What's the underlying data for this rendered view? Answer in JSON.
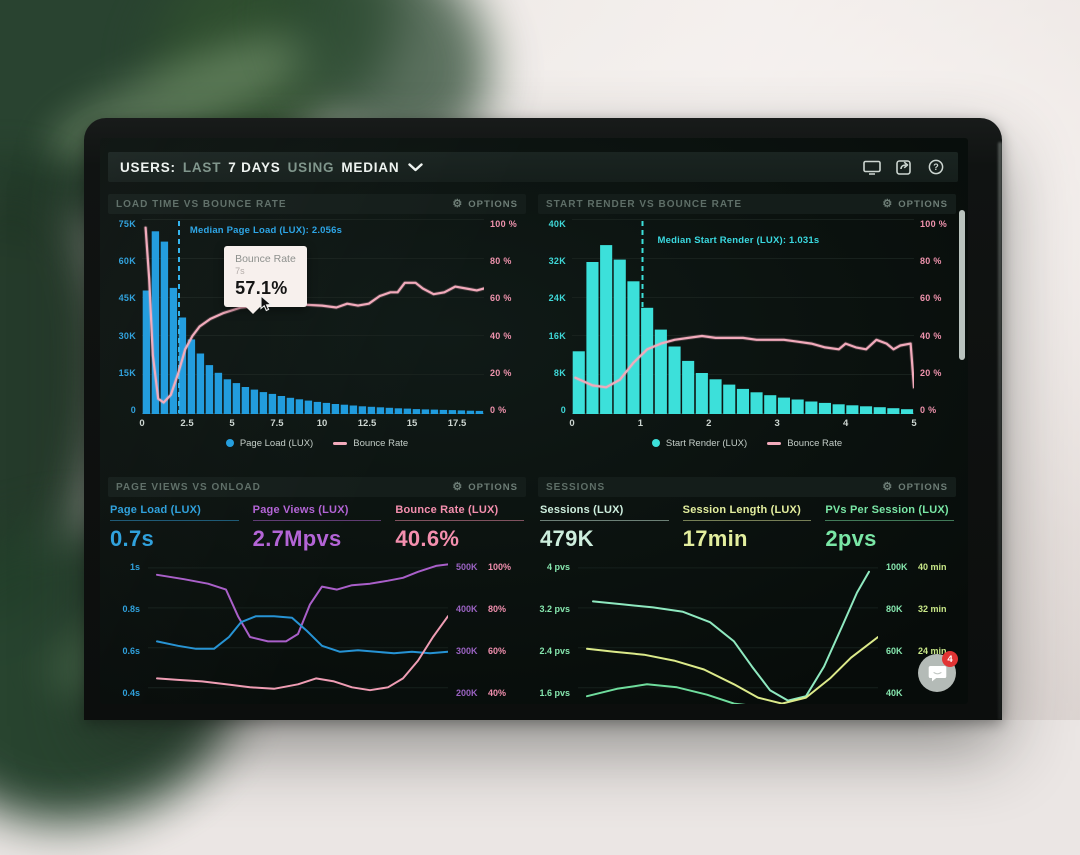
{
  "window": {
    "title_segments": [
      {
        "text": "USERS:"
      },
      {
        "text": "LAST"
      },
      {
        "text": "7 DAYS"
      },
      {
        "text": "USING"
      },
      {
        "text": "MEDIAN"
      }
    ],
    "toolbar_icons": [
      "display-icon",
      "share-icon",
      "help-icon"
    ]
  },
  "panels": [
    {
      "title": "LOAD TIME VS BOUNCE RATE",
      "options_label": "OPTIONS",
      "tooltip": {
        "title": "Bounce Rate",
        "sub": "7s",
        "value": "57.1%"
      },
      "legend": [
        {
          "label": "Page Load (LUX)",
          "color": "#229ddd"
        },
        {
          "label": "Bounce Rate",
          "color": "#f2aabb"
        }
      ]
    },
    {
      "title": "START RENDER VS BOUNCE RATE",
      "options_label": "OPTIONS",
      "legend": [
        {
          "label": "Start Render (LUX)",
          "color": "#3ce0da"
        },
        {
          "label": "Bounce Rate",
          "color": "#f2aabb"
        }
      ]
    },
    {
      "title": "PAGE VIEWS VS ONLOAD",
      "options_label": "OPTIONS",
      "stats": [
        {
          "label": "Page Load (LUX)",
          "value": "0.7s",
          "color": "#2da0dc"
        },
        {
          "label": "Page Views (LUX)",
          "value": "2.7Mpvs",
          "color": "#b364d6"
        },
        {
          "label": "Bounce Rate (LUX)",
          "value": "40.6%",
          "color": "#f48fae"
        }
      ],
      "left_axis": [
        "1s",
        "0.8s",
        "0.6s",
        "0.4s"
      ],
      "left_axis_color": "#2da0dc",
      "right_axis": [
        [
          "500K",
          "100%"
        ],
        [
          "400K",
          "80%"
        ],
        [
          "300K",
          "60%"
        ],
        [
          "200K",
          "40%"
        ]
      ],
      "right_axis_colors": [
        "#9a63c2",
        "#f08fae"
      ]
    },
    {
      "title": "SESSIONS",
      "options_label": "OPTIONS",
      "stats": [
        {
          "label": "Sessions (LUX)",
          "value": "479K",
          "color": "#cdeedd"
        },
        {
          "label": "Session Length (LUX)",
          "value": "17min",
          "color": "#e3ee9e"
        },
        {
          "label": "PVs Per Session (LUX)",
          "value": "2pvs",
          "color": "#79e6a5"
        }
      ],
      "left_axis": [
        "4 pvs",
        "3.2 pvs",
        "2.4 pvs",
        "1.6 pvs"
      ],
      "left_axis_color": "#86e6ae",
      "right_axis": [
        [
          "100K",
          "40 min"
        ],
        [
          "80K",
          "32 min"
        ],
        [
          "60K",
          "24 min"
        ],
        [
          "40K",
          ""
        ]
      ],
      "right_axis_colors": [
        "#86e6ae",
        "#c9e888"
      ]
    }
  ],
  "chart_data": [
    {
      "type": "histogram",
      "title": "LOAD TIME VS BOUNCE RATE",
      "bars_name": "Page Load (LUX)",
      "bar_bin_seconds": 0.5,
      "x_max": 19,
      "y_left_max_k": 75,
      "bars": [
        48,
        71,
        67,
        49,
        37.5,
        29,
        23.5,
        19,
        16,
        13.5,
        12,
        10.5,
        9.5,
        8.5,
        7.8,
        7,
        6.3,
        5.7,
        5.2,
        4.7,
        4.3,
        3.9,
        3.6,
        3.3,
        3,
        2.8,
        2.6,
        2.4,
        2.2,
        2.1,
        1.9,
        1.8,
        1.7,
        1.6,
        1.5,
        1.4,
        1.3,
        1.2
      ],
      "bar_color": "#1f9bdd",
      "line_name": "Bounce Rate",
      "line_points": [
        [
          0.2,
          97
        ],
        [
          0.4,
          70
        ],
        [
          0.6,
          30
        ],
        [
          0.9,
          7
        ],
        [
          1.2,
          5
        ],
        [
          1.6,
          9
        ],
        [
          2.0,
          20
        ],
        [
          2.4,
          33
        ],
        [
          2.8,
          40
        ],
        [
          3.2,
          45
        ],
        [
          3.8,
          49
        ],
        [
          4.5,
          52
        ],
        [
          5.5,
          55
        ],
        [
          6.5,
          56
        ],
        [
          7,
          57.1
        ],
        [
          8,
          57
        ],
        [
          9,
          56.5
        ],
        [
          10,
          56
        ],
        [
          10.8,
          55
        ],
        [
          11.4,
          57
        ],
        [
          12,
          56
        ],
        [
          12.6,
          57
        ],
        [
          13.2,
          61
        ],
        [
          13.8,
          63
        ],
        [
          14.2,
          63
        ],
        [
          14.6,
          68
        ],
        [
          15.2,
          68
        ],
        [
          15.6,
          65
        ],
        [
          16.2,
          62
        ],
        [
          16.8,
          63
        ],
        [
          17.4,
          66
        ],
        [
          18,
          65
        ],
        [
          18.6,
          64
        ],
        [
          19,
          65
        ]
      ],
      "line_color": "#f2aabb",
      "median_label": "Median Page Load (LUX): 2.056s",
      "median_x": 2.056,
      "accent": "#2fb3ef",
      "x_ticks": [
        "0",
        "2.5",
        "5",
        "7.5",
        "10",
        "12.5",
        "15",
        "17.5"
      ],
      "x_color": "#ccd5d0",
      "y_left_ticks": [
        "75K",
        "60K",
        "45K",
        "30K",
        "15K",
        "0"
      ],
      "y_left_color": "#2da0dc",
      "y_right_ticks": [
        "100 %",
        "80 %",
        "60 %",
        "40 %",
        "20 %",
        "0 %"
      ],
      "y_right_color": "#ef93ad"
    },
    {
      "type": "histogram",
      "title": "START RENDER VS BOUNCE RATE",
      "bars_name": "Start Render (LUX)",
      "bar_bin_seconds": 0.2,
      "x_max": 5,
      "y_left_max_k": 40,
      "bars": [
        13,
        31.5,
        35,
        32,
        27.5,
        22,
        17.5,
        14,
        11,
        8.5,
        7.2,
        6.1,
        5.2,
        4.5,
        3.9,
        3.4,
        3,
        2.6,
        2.3,
        2,
        1.8,
        1.6,
        1.4,
        1.2,
        1
      ],
      "bar_color": "#3ce0da",
      "line_name": "Bounce Rate",
      "line_points": [
        [
          0.05,
          18
        ],
        [
          0.3,
          14
        ],
        [
          0.5,
          13
        ],
        [
          0.7,
          17
        ],
        [
          0.9,
          26
        ],
        [
          1.1,
          33
        ],
        [
          1.3,
          36
        ],
        [
          1.5,
          38
        ],
        [
          1.7,
          39
        ],
        [
          1.9,
          40
        ],
        [
          2.1,
          39
        ],
        [
          2.3,
          39
        ],
        [
          2.5,
          39
        ],
        [
          2.7,
          38
        ],
        [
          2.9,
          38
        ],
        [
          3.1,
          38
        ],
        [
          3.3,
          37
        ],
        [
          3.5,
          36
        ],
        [
          3.7,
          34
        ],
        [
          3.9,
          33
        ],
        [
          4.0,
          36
        ],
        [
          4.15,
          34
        ],
        [
          4.3,
          33
        ],
        [
          4.45,
          38
        ],
        [
          4.6,
          36
        ],
        [
          4.7,
          33
        ],
        [
          4.8,
          35
        ],
        [
          4.95,
          36
        ],
        [
          5.0,
          13
        ]
      ],
      "line_color": "#f2aabb",
      "median_label": "Median Start Render (LUX): 1.031s",
      "median_x": 1.031,
      "accent": "#3ce0da",
      "x_ticks": [
        "0",
        "1",
        "2",
        "3",
        "4",
        "5"
      ],
      "x_color": "#ccd5d0",
      "y_left_ticks": [
        "40K",
        "32K",
        "24K",
        "16K",
        "8K",
        "0"
      ],
      "y_left_color": "#3fd8d8",
      "y_right_ticks": [
        "100 %",
        "80 %",
        "60 %",
        "40 %",
        "20 %",
        "0 %"
      ],
      "y_right_color": "#ef93ad"
    },
    {
      "type": "lines",
      "title": "PAGE VIEWS VS ONLOAD",
      "grid_rows_pct": [
        5,
        32,
        59,
        86
      ],
      "series": [
        {
          "name": "Page Views (LUX)",
          "color": "#a95fc9",
          "points": [
            [
              3,
              10
            ],
            [
              12,
              13
            ],
            [
              20,
              16
            ],
            [
              26,
              20
            ],
            [
              30,
              38
            ],
            [
              34,
              52
            ],
            [
              40,
              55
            ],
            [
              46,
              55
            ],
            [
              50,
              50
            ],
            [
              54,
              30
            ],
            [
              58,
              18
            ],
            [
              63,
              20
            ],
            [
              68,
              17
            ],
            [
              74,
              16
            ],
            [
              80,
              14
            ],
            [
              85,
              12
            ],
            [
              90,
              8
            ],
            [
              96,
              4
            ],
            [
              100,
              3
            ]
          ]
        },
        {
          "name": "Page Load (LUX)",
          "color": "#2693d4",
          "points": [
            [
              3,
              55
            ],
            [
              10,
              58
            ],
            [
              16,
              60
            ],
            [
              22,
              60
            ],
            [
              27,
              52
            ],
            [
              31,
              42
            ],
            [
              36,
              38
            ],
            [
              42,
              38
            ],
            [
              48,
              39
            ],
            [
              53,
              48
            ],
            [
              58,
              58
            ],
            [
              64,
              62
            ],
            [
              70,
              61
            ],
            [
              76,
              62
            ],
            [
              82,
              63
            ],
            [
              88,
              62
            ],
            [
              94,
              63
            ],
            [
              100,
              62
            ]
          ]
        },
        {
          "name": "Bounce Rate (LUX)",
          "color": "#ef9db4",
          "points": [
            [
              3,
              80
            ],
            [
              10,
              81
            ],
            [
              18,
              82
            ],
            [
              26,
              84
            ],
            [
              34,
              86
            ],
            [
              42,
              87
            ],
            [
              50,
              84
            ],
            [
              56,
              80
            ],
            [
              62,
              82
            ],
            [
              68,
              86
            ],
            [
              74,
              88
            ],
            [
              80,
              86
            ],
            [
              85,
              80
            ],
            [
              90,
              68
            ],
            [
              95,
              52
            ],
            [
              100,
              38
            ]
          ]
        }
      ]
    },
    {
      "type": "lines",
      "title": "SESSIONS",
      "grid_rows_pct": [
        5,
        32,
        59,
        86
      ],
      "series": [
        {
          "name": "Sessions (LUX)",
          "color": "#8fe9c0",
          "points": [
            [
              5,
              28
            ],
            [
              15,
              30
            ],
            [
              25,
              32
            ],
            [
              35,
              35
            ],
            [
              44,
              42
            ],
            [
              52,
              55
            ],
            [
              58,
              72
            ],
            [
              64,
              88
            ],
            [
              70,
              95
            ],
            [
              76,
              92
            ],
            [
              82,
              72
            ],
            [
              88,
              45
            ],
            [
              93,
              22
            ],
            [
              97,
              8
            ]
          ]
        },
        {
          "name": "Session Length (LUX)",
          "color": "#dcea8a",
          "points": [
            [
              3,
              60
            ],
            [
              12,
              62
            ],
            [
              22,
              64
            ],
            [
              32,
              68
            ],
            [
              42,
              74
            ],
            [
              52,
              84
            ],
            [
              60,
              93
            ],
            [
              68,
              97
            ],
            [
              76,
              93
            ],
            [
              84,
              80
            ],
            [
              91,
              66
            ],
            [
              100,
              52
            ]
          ]
        },
        {
          "name": "PVs Per Session (LUX)",
          "color": "#6fdd9d",
          "points": [
            [
              3,
              92
            ],
            [
              13,
              87
            ],
            [
              23,
              84
            ],
            [
              33,
              86
            ],
            [
              43,
              91
            ],
            [
              52,
              97
            ],
            [
              60,
              99
            ]
          ]
        }
      ]
    }
  ],
  "chat": {
    "badge": "4"
  }
}
